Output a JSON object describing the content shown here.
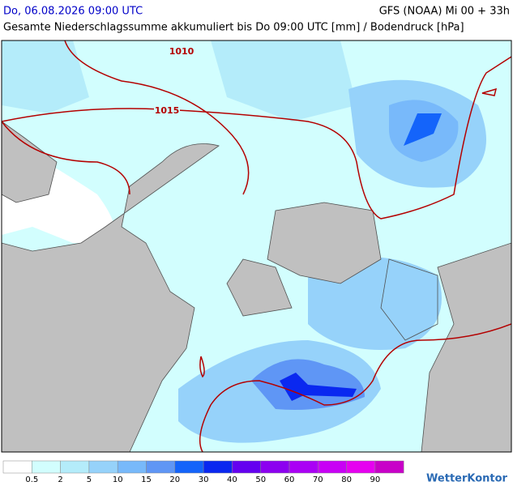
{
  "header": {
    "date": "Do, 06.08.2026 09:00 UTC",
    "model": "GFS (NOAA) Mi 00 + 33h",
    "subtitle": "Gesamte Niederschlagssumme akkumuliert bis Do 09:00 UTC [mm] / Bodendruck [hPa]"
  },
  "map": {
    "isobar_labels": [
      "1010",
      "1015"
    ]
  },
  "legend": {
    "colors": [
      "#ffffff",
      "#d2fefe",
      "#b4ecfa",
      "#96d2fa",
      "#78b9fa",
      "#5f96f5",
      "#1464fa",
      "#0a28f0",
      "#6400f0",
      "#8c00f0",
      "#aa00f5",
      "#c800f5",
      "#e600f0",
      "#c800c8"
    ],
    "labels": [
      "0.5",
      "2",
      "5",
      "10",
      "15",
      "20",
      "30",
      "40",
      "50",
      "60",
      "70",
      "80",
      "90"
    ]
  },
  "logo": "WetterKontor"
}
